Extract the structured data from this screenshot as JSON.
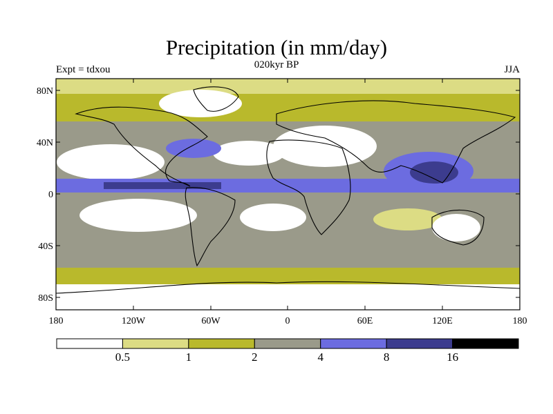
{
  "title": "Precipitation (in mm/day)",
  "subtitle": "020kyr BP",
  "left_label": "Expt = tdxou",
  "right_label": "JJA",
  "lat_ticks": [
    "80N",
    "40N",
    "0",
    "40S",
    "80S"
  ],
  "lon_ticks": [
    "180",
    "120W",
    "60W",
    "0",
    "60E",
    "120E",
    "180"
  ],
  "colorbar": {
    "labels": [
      "0.5",
      "1",
      "2",
      "4",
      "8",
      "16"
    ],
    "colors": [
      "#ffffff",
      "#dcdc84",
      "#b9b92c",
      "#9a9a8a",
      "#6c6ce0",
      "#3c3c8e",
      "#000000"
    ]
  }
}
